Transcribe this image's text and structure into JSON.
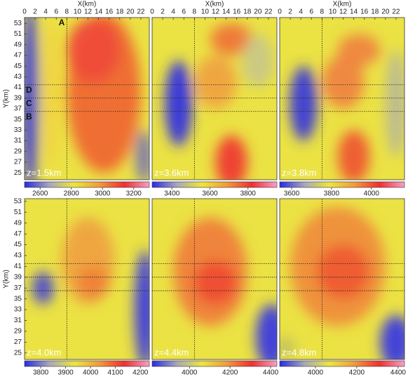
{
  "chart_data": [
    {
      "type": "heatmap",
      "x_label": "X(km)",
      "y_label": "Y(km)",
      "annotation": "z=1.5km",
      "xlim": [
        0,
        23.6
      ],
      "ylim": [
        23.7,
        54.1
      ],
      "xticks": [
        0,
        2,
        4,
        6,
        8,
        10,
        12,
        14,
        16,
        18,
        20,
        22
      ],
      "yticks": [
        25,
        27,
        29,
        31,
        33,
        35,
        37,
        39,
        41,
        43,
        45,
        47,
        49,
        51,
        53
      ],
      "profile_x": 8,
      "profile_y": [
        41.5,
        39,
        36.5
      ],
      "profile_x_label": "A",
      "profile_y_labels": [
        "D",
        "C",
        "B"
      ],
      "colorbar": {
        "clim": [
          2500,
          3300
        ],
        "ticks": [
          2600,
          2800,
          3000,
          3200
        ]
      },
      "colormap": [
        "#2a2ae6",
        "#a8a8b8",
        "#ece63c",
        "#f29a3a",
        "#ee3030",
        "#f6a0c8"
      ]
    },
    {
      "type": "heatmap",
      "x_label": "X(km)",
      "annotation": "z=3.6km",
      "xlim": [
        0,
        23.6
      ],
      "ylim": [
        23.7,
        54.1
      ],
      "xticks": [
        0,
        2,
        4,
        6,
        8,
        10,
        12,
        14,
        16,
        18,
        20,
        22
      ],
      "profile_x": 8,
      "profile_y": [
        41.5,
        39,
        36.5
      ],
      "colorbar": {
        "clim": [
          3296,
          3952
        ],
        "ticks": [
          3400,
          3600,
          3800
        ]
      },
      "colormap": [
        "#2a2ae6",
        "#a8a8b8",
        "#ece63c",
        "#f29a3a",
        "#ee3030",
        "#f6a0c8"
      ]
    },
    {
      "type": "heatmap",
      "x_label": "X(km)",
      "annotation": "z=3.8km",
      "xlim": [
        0,
        23.6
      ],
      "ylim": [
        23.7,
        54.1
      ],
      "xticks": [
        0,
        2,
        4,
        6,
        8,
        10,
        12,
        14,
        16,
        18,
        20,
        22
      ],
      "profile_x": 8,
      "profile_y": [
        41.5,
        39,
        36.5
      ],
      "colorbar": {
        "clim": [
          3540,
          4166
        ],
        "ticks": [
          3600,
          3800,
          4000
        ]
      },
      "colormap": [
        "#2a2ae6",
        "#a8a8b8",
        "#ece63c",
        "#f29a3a",
        "#ee3030",
        "#f6a0c8"
      ]
    },
    {
      "type": "heatmap",
      "y_label": "Y(km)",
      "annotation": "z=4.0km",
      "xlim": [
        0,
        23.6
      ],
      "ylim": [
        23.8,
        53.5
      ],
      "yticks": [
        25,
        27,
        29,
        31,
        33,
        35,
        37,
        39,
        41,
        43,
        45,
        47,
        49,
        51,
        53
      ],
      "profile_x": 8,
      "profile_y": [
        41.5,
        39,
        36.5
      ],
      "colorbar": {
        "clim": [
          3735,
          4236
        ],
        "ticks": [
          3800,
          3900,
          4000,
          4100,
          4200
        ]
      },
      "colormap": [
        "#2a2ae6",
        "#a8a8b8",
        "#ece63c",
        "#f29a3a",
        "#ee3030",
        "#f6a0c8"
      ]
    },
    {
      "type": "heatmap",
      "annotation": "z=4.4km",
      "xlim": [
        0,
        23.6
      ],
      "ylim": [
        23.8,
        53.5
      ],
      "profile_x": 8,
      "profile_y": [
        41.5,
        39,
        36.5
      ],
      "colorbar": {
        "clim": [
          3816,
          4431
        ],
        "ticks": [
          4000,
          4200,
          4400
        ]
      },
      "colormap": [
        "#2a2ae6",
        "#a8a8b8",
        "#ece63c",
        "#f29a3a",
        "#ee3030",
        "#f6a0c8"
      ]
    },
    {
      "type": "heatmap",
      "annotation": "z=4.8km",
      "xlim": [
        0,
        23.6
      ],
      "ylim": [
        23.8,
        53.5
      ],
      "profile_x": 8,
      "profile_y": [
        41.5,
        39,
        36.5
      ],
      "colorbar": {
        "clim": [
          3827,
          4431
        ],
        "ticks": [
          4000,
          4200,
          4400
        ]
      },
      "colormap": [
        "#2a2ae6",
        "#a8a8b8",
        "#ece63c",
        "#f29a3a",
        "#ee3030",
        "#f6a0c8"
      ]
    }
  ]
}
